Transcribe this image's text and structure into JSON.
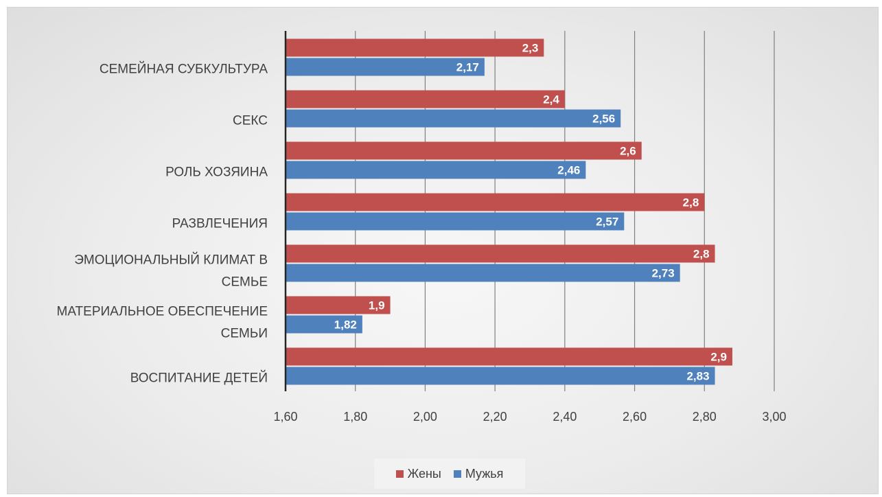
{
  "chart_data": {
    "type": "bar",
    "orientation": "horizontal",
    "categories": [
      "СЕМЕЙНАЯ СУБКУЛЬТУРА",
      "СЕКС",
      "РОЛЬ ХОЗЯИНА",
      "РАЗВЛЕЧЕНИЯ",
      "ЭМОЦИОНАЛЬНЫЙ КЛИМАТ В СЕМЬЕ",
      "МАТЕРИАЛЬНОЕ ОБЕСПЕЧЕНИЕ СЕМЬИ",
      "ВОСПИТАНИЕ ДЕТЕЙ"
    ],
    "category_lines": [
      [
        "СЕМЕЙНАЯ СУБКУЛЬТУРА"
      ],
      [
        "СЕКС"
      ],
      [
        "РОЛЬ ХОЗЯИНА"
      ],
      [
        "РАЗВЛЕЧЕНИЯ"
      ],
      [
        "ЭМОЦИОНАЛЬНЫЙ КЛИМАТ В",
        "СЕМЬЕ"
      ],
      [
        "МАТЕРИАЛЬНОЕ ОБЕСПЕЧЕНИЕ",
        "СЕМЬИ"
      ],
      [
        "ВОСПИТАНИЕ ДЕТЕЙ"
      ]
    ],
    "series": [
      {
        "name": "Жены",
        "color": "#c0504d",
        "values": [
          2.34,
          2.4,
          2.62,
          2.8,
          2.83,
          1.9,
          2.88
        ],
        "labels": [
          "2,3",
          "2,4",
          "2,6",
          "2,8",
          "2,8",
          "1,9",
          "2,9"
        ]
      },
      {
        "name": "Мужья",
        "color": "#4f81bd",
        "values": [
          2.17,
          2.56,
          2.46,
          2.57,
          2.73,
          1.82,
          2.83
        ],
        "labels": [
          "2,17",
          "2,56",
          "2,46",
          "2,57",
          "2,73",
          "1,82",
          "2,83"
        ]
      }
    ],
    "xlim": [
      1.6,
      3.0
    ],
    "xticks": [
      1.6,
      1.8,
      2.0,
      2.2,
      2.4,
      2.6,
      2.8,
      3.0
    ],
    "xtick_labels": [
      "1,60",
      "1,80",
      "2,00",
      "2,20",
      "2,40",
      "2,60",
      "2,80",
      "3,00"
    ],
    "grid": true,
    "legend_position": "bottom",
    "title": "",
    "xlabel": "",
    "ylabel": ""
  }
}
